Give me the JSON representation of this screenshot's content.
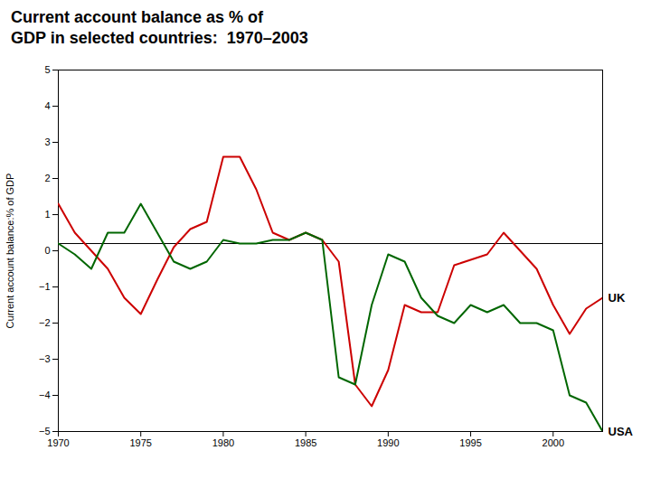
{
  "chart_data": {
    "type": "line",
    "title": "Current account balance as % of\nGDP in selected countries:  1970–2003",
    "ylabel": "Current account balance:% of GDP",
    "x": [
      1970,
      1971,
      1972,
      1973,
      1974,
      1975,
      1976,
      1977,
      1978,
      1979,
      1980,
      1981,
      1982,
      1983,
      1984,
      1985,
      1986,
      1987,
      1988,
      1989,
      1990,
      1991,
      1992,
      1993,
      1994,
      1995,
      1996,
      1997,
      1998,
      1999,
      2000,
      2001,
      2002,
      2003
    ],
    "series": [
      {
        "name": "UK",
        "color": "#CC0000",
        "values": [
          1.3,
          0.5,
          0.0,
          -0.5,
          -1.3,
          -1.75,
          -0.8,
          0.1,
          0.6,
          0.8,
          2.6,
          2.6,
          1.7,
          0.5,
          0.3,
          0.5,
          0.3,
          -0.3,
          -3.7,
          -4.3,
          -3.3,
          -1.5,
          -1.7,
          -1.7,
          -0.4,
          -0.25,
          -0.1,
          0.5,
          0.0,
          -0.5,
          -1.5,
          -2.3,
          -1.6,
          -1.3
        ]
      },
      {
        "name": "USA",
        "color": "#006600",
        "values": [
          0.2,
          -0.1,
          -0.5,
          0.5,
          0.5,
          1.3,
          0.5,
          -0.3,
          -0.5,
          -0.3,
          0.3,
          0.2,
          0.2,
          0.3,
          0.3,
          0.5,
          0.3,
          -3.5,
          -3.7,
          -1.5,
          -0.1,
          -0.3,
          -1.3,
          -1.8,
          -2.0,
          -1.5,
          -1.7,
          -1.5,
          -2.0,
          -2.0,
          -2.2,
          -4.0,
          -4.2,
          -5.0
        ]
      }
    ],
    "xlim": [
      1970,
      2003
    ],
    "ylim": [
      -5,
      5
    ],
    "xticks": [
      1970,
      1975,
      1980,
      1985,
      1990,
      1995,
      2000
    ],
    "yticks": [
      -5,
      -4,
      -3,
      -2,
      -1,
      0,
      1,
      2,
      3,
      4,
      5
    ],
    "grid": false,
    "reference_lines": [
      {
        "y": 0.2,
        "color": "black",
        "line_style": "dashed"
      }
    ]
  }
}
